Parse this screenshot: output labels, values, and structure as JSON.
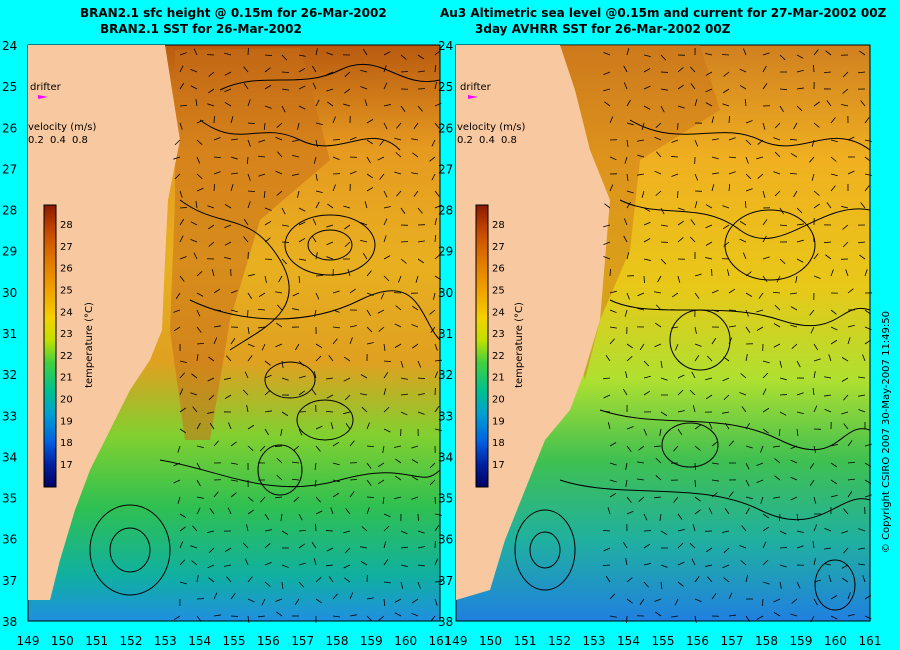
{
  "left_panel": {
    "title_line1": "BRAN2.1 sfc height @ 0.15m for 26-Mar-2002",
    "title_line2": "BRAN2.1 SST for 26-Mar-2002",
    "drifter_label": "drifter",
    "velocity_label": "velocity (m/s)",
    "velocity_scale": [
      "0.2",
      "0.4",
      "0.8"
    ],
    "colorbar_label": "temperature (°C)"
  },
  "right_panel": {
    "title_line1": "Au3 Altimetric sea level  @0.15m and current for 27-Mar-2002 00Z",
    "title_line2": "3day AVHRR SST for 26-Mar-2002 00Z",
    "drifter_label": "drifter",
    "velocity_label": "velocity (m/s)",
    "velocity_scale": [
      "0.2",
      "0.4",
      "0.8"
    ],
    "colorbar_label": "temperature (°C)"
  },
  "lat_ticks": [
    "24",
    "25",
    "26",
    "27",
    "28",
    "29",
    "30",
    "31",
    "32",
    "33",
    "34",
    "35",
    "36",
    "37",
    "38"
  ],
  "lon_ticks": [
    "149",
    "150",
    "151",
    "152",
    "153",
    "154",
    "155",
    "156",
    "157",
    "158",
    "159",
    "160",
    "161"
  ],
  "colorbar_ticks": [
    "28",
    "27",
    "26",
    "25",
    "24",
    "23",
    "22",
    "21",
    "20",
    "19",
    "18",
    "17"
  ],
  "colorbar_colors": [
    "#8b1a00",
    "#c84b00",
    "#e07a00",
    "#f0a000",
    "#f5c800",
    "#e8e000",
    "#a8e000",
    "#40d040",
    "#00c080",
    "#00a0c0",
    "#0060e0",
    "#0020a0",
    "#000060"
  ],
  "copyright": "© Copyright CSIRO 2007   30-May-2007 11:49:50"
}
